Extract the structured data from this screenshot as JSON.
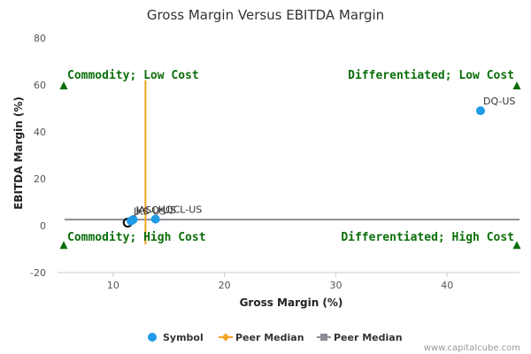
{
  "chart_data": {
    "type": "scatter",
    "title": "Gross Margin Versus EBITDA Margin",
    "xlabel": "Gross Margin (%)",
    "ylabel": "EBITDA Margin (%)",
    "xlim": [
      5,
      46.5
    ],
    "ylim": [
      -20,
      80
    ],
    "xticks": [
      10,
      20,
      30,
      40
    ],
    "yticks": [
      -20,
      0,
      20,
      40,
      60,
      80
    ],
    "grid": false,
    "legend_position": "bottom",
    "points": [
      {
        "label": "DQ-US",
        "x": 43.0,
        "y": 49.0
      },
      {
        "label": "HQCL-US",
        "x": 13.8,
        "y": 2.8
      },
      {
        "label": "JASO-US",
        "x": 11.8,
        "y": 2.6
      },
      {
        "label": "JKS-US",
        "x": 11.6,
        "y": 2.0
      }
    ],
    "highlighted_point": {
      "x": 11.3,
      "y": 1.3
    },
    "peer_median_x": 12.9,
    "peer_median_y": 2.6,
    "quadrant_labels": [
      {
        "text": "Commodity; Low Cost",
        "corner": "top-left"
      },
      {
        "text": "Differentiated; Low Cost",
        "corner": "top-right"
      },
      {
        "text": "Commodity; High Cost",
        "corner": "bottom-left"
      },
      {
        "text": "Differentiated; High Cost",
        "corner": "bottom-right"
      }
    ],
    "legend": [
      {
        "name": "Symbol",
        "color": "#1f9be8",
        "marker": "circle"
      },
      {
        "name": "Peer Median",
        "color": "#f5a623",
        "marker": "diamond"
      },
      {
        "name": "Peer Median",
        "color": "#8c8c96",
        "marker": "square"
      }
    ],
    "colors": {
      "symbol": "#1f9be8",
      "peer_median_x": "#f5a623",
      "peer_median_y": "#8c8c96",
      "quadrant": "#0a6e0a"
    }
  },
  "credit": "www.capitalcube.com"
}
